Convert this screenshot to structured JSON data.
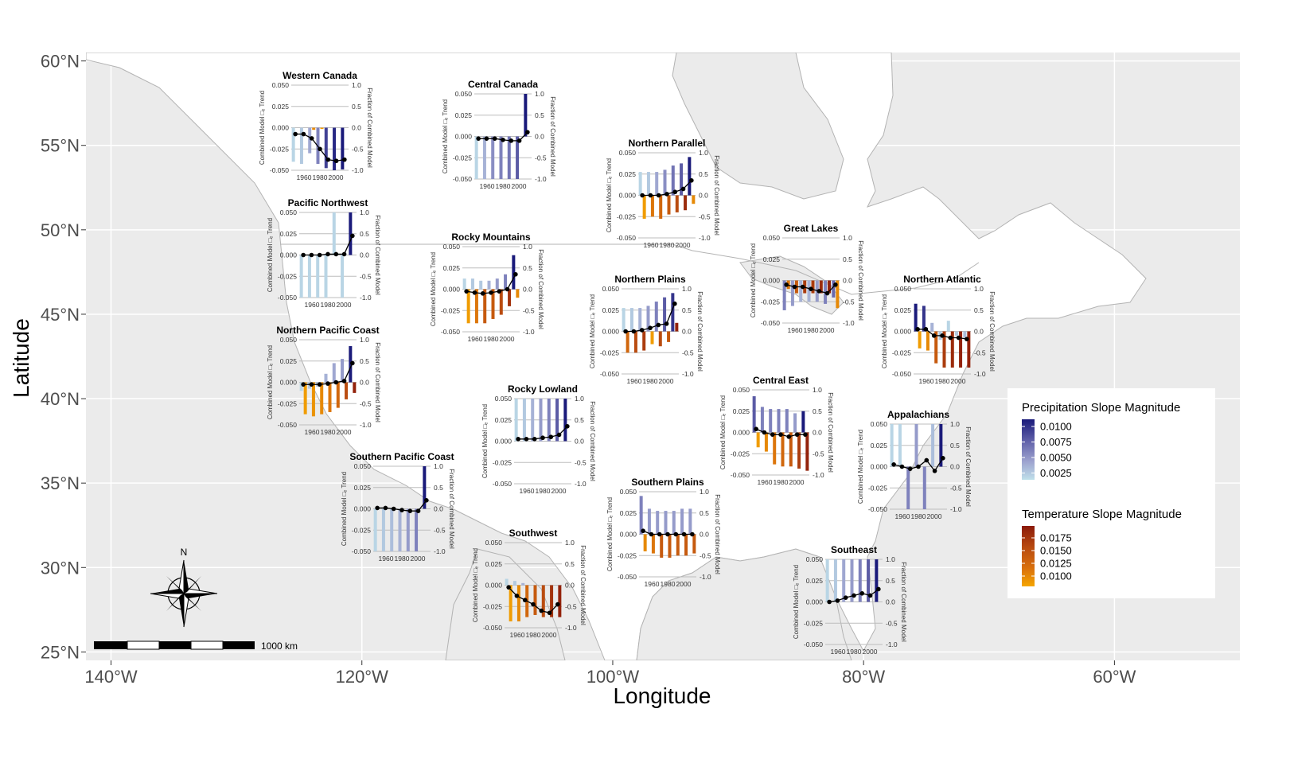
{
  "axes": {
    "x_label": "Longitude",
    "y_label": "Latitude",
    "x_ticks": [
      {
        "lon": -140,
        "label": "140°W"
      },
      {
        "lon": -120,
        "label": "120°W"
      },
      {
        "lon": -100,
        "label": "100°W"
      },
      {
        "lon": -80,
        "label": "80°W"
      },
      {
        "lon": -60,
        "label": "60°W"
      }
    ],
    "y_ticks": [
      {
        "lat": 60,
        "label": "60°N"
      },
      {
        "lat": 55,
        "label": "55°N"
      },
      {
        "lat": 50,
        "label": "50°N"
      },
      {
        "lat": 45,
        "label": "45°N"
      },
      {
        "lat": 40,
        "label": "40°N"
      },
      {
        "lat": 35,
        "label": "35°N"
      },
      {
        "lat": 30,
        "label": "30°N"
      },
      {
        "lat": 25,
        "label": "25°N"
      }
    ],
    "lon_range": [
      -142,
      -50
    ],
    "lat_range": [
      24.5,
      60.5
    ]
  },
  "map_colors": {
    "background": "#ebebeb",
    "land": "#ffffff",
    "border": "#b3b3b3",
    "grid": "#ffffff"
  },
  "compass": {
    "label": "N"
  },
  "scale_bar": {
    "label": "1000 km"
  },
  "mini_chart": {
    "left_axis_label": "Combined Model □ₑ Trend",
    "right_axis_label": "Fraction of Combined Model",
    "left_ticks": [
      "0.050",
      "0.025",
      "0.000",
      "-0.025",
      "-0.050"
    ],
    "right_ticks": [
      "1.0",
      "0.5",
      "0.0",
      "-0.5",
      "-1.0"
    ],
    "x_ticks": [
      "1960",
      "1980",
      "2000"
    ]
  },
  "legend": {
    "precip_title": "Precipitation Slope Magnitude",
    "precip_labels": [
      "0.0100",
      "0.0075",
      "0.0050",
      "0.0025"
    ],
    "precip_colors": [
      "#1a1a7a",
      "#5f5fa8",
      "#9da3cf",
      "#bfe0ea"
    ],
    "temp_title": "Temperature Slope Magnitude",
    "temp_labels": [
      "0.0175",
      "0.0150",
      "0.0125",
      "0.0100"
    ],
    "temp_colors": [
      "#8b1a0a",
      "#b84a10",
      "#d9700c",
      "#f5a600"
    ]
  },
  "chart_data": [
    {
      "type": "bar",
      "name": "Western Canada",
      "precip": [
        -0.8,
        -0.85,
        -0.6,
        -0.85,
        -0.95,
        -1.0,
        -0.98
      ],
      "precip_mag": [
        0.0025,
        0.003,
        0.0045,
        0.006,
        0.0085,
        0.0095,
        0.01
      ],
      "temp": [
        0,
        0,
        -0.05,
        -0.03,
        0,
        0,
        0
      ],
      "temp_mag": [
        0.01,
        0.01,
        0.011,
        0.01,
        0.01,
        0.01,
        0.01
      ],
      "line": [
        -0.15,
        -0.15,
        -0.25,
        -0.5,
        -0.75,
        -0.78,
        -0.75
      ]
    },
    {
      "type": "bar",
      "name": "Central Canada",
      "precip": [
        -1.0,
        -1.0,
        -1.0,
        -1.0,
        -1.0,
        -1.0,
        1.0
      ],
      "precip_mag": [
        0.0025,
        0.004,
        0.0055,
        0.006,
        0.0065,
        0.0075,
        0.01
      ],
      "temp": [
        0,
        0,
        0,
        0,
        0,
        0,
        0
      ],
      "temp_mag": [
        0.01,
        0.01,
        0.01,
        0.01,
        0.01,
        0.01,
        0.01
      ],
      "line": [
        -0.05,
        -0.05,
        -0.05,
        -0.08,
        -0.1,
        -0.1,
        0.1
      ]
    },
    {
      "type": "bar",
      "name": "Northern Parallel",
      "precip": [
        0.55,
        0.55,
        0.55,
        0.6,
        0.7,
        0.75,
        0.9
      ],
      "precip_mag": [
        0.0025,
        0.003,
        0.0045,
        0.0055,
        0.0065,
        0.0075,
        0.01
      ],
      "temp": [
        -0.55,
        -0.5,
        -0.55,
        -0.45,
        -0.4,
        -0.35,
        -0.2
      ],
      "temp_mag": [
        0.01,
        0.012,
        0.013,
        0.014,
        0.015,
        0.017,
        0.011
      ],
      "line": [
        0.0,
        0.0,
        0.0,
        0.03,
        0.08,
        0.15,
        0.35
      ]
    },
    {
      "type": "bar",
      "name": "Pacific Northwest",
      "precip": [
        -1.0,
        -1.0,
        -1.0,
        -1.0,
        1.0,
        -1.0,
        1.0
      ],
      "precip_mag": [
        0.0025,
        0.0025,
        0.0025,
        0.0025,
        0.0025,
        0.0025,
        0.01
      ],
      "temp": [
        0,
        0,
        0,
        0,
        0,
        0,
        0
      ],
      "temp_mag": [
        0.01,
        0.01,
        0.01,
        0.01,
        0.01,
        0.01,
        0.01
      ],
      "line": [
        0.0,
        0.0,
        0.0,
        0.02,
        0.02,
        0.02,
        0.45
      ]
    },
    {
      "type": "bar",
      "name": "Rocky Mountains",
      "precip": [
        0.25,
        0.25,
        0.2,
        0.2,
        0.25,
        0.35,
        0.8
      ],
      "precip_mag": [
        0.0025,
        0.003,
        0.003,
        0.004,
        0.005,
        0.006,
        0.01
      ],
      "temp": [
        -0.8,
        -0.8,
        -0.8,
        -0.7,
        -0.6,
        -0.4,
        -0.2
      ],
      "temp_mag": [
        0.01,
        0.012,
        0.014,
        0.014,
        0.015,
        0.0165,
        0.011
      ],
      "line": [
        -0.05,
        -0.08,
        -0.1,
        -0.08,
        -0.05,
        0.0,
        0.35
      ]
    },
    {
      "type": "bar",
      "name": "Great Lakes",
      "precip": [
        -0.7,
        -0.6,
        -0.5,
        -0.5,
        -0.5,
        -0.55,
        -0.4
      ],
      "precip_mag": [
        0.006,
        0.005,
        0.004,
        0.004,
        0.005,
        0.006,
        0.007
      ],
      "temp": [
        -0.2,
        -0.3,
        -0.3,
        -0.3,
        -0.3,
        -0.3,
        -0.65
      ],
      "temp_mag": [
        0.012,
        0.014,
        0.016,
        0.016,
        0.017,
        0.0175,
        0.011
      ],
      "line": [
        -0.1,
        -0.15,
        -0.15,
        -0.2,
        -0.25,
        -0.3,
        -0.1
      ]
    },
    {
      "type": "bar",
      "name": "Northern Plains",
      "precip": [
        0.55,
        0.55,
        0.55,
        0.6,
        0.7,
        0.8,
        0.9
      ],
      "precip_mag": [
        0.0025,
        0.003,
        0.004,
        0.005,
        0.006,
        0.0075,
        0.009
      ],
      "temp": [
        -0.5,
        -0.5,
        -0.45,
        -0.3,
        -0.35,
        -0.25,
        0.2
      ],
      "temp_mag": [
        0.013,
        0.015,
        0.016,
        0.01,
        0.015,
        0.014,
        0.0175
      ],
      "line": [
        0.0,
        0.0,
        0.03,
        0.08,
        0.15,
        0.18,
        0.65
      ]
    },
    {
      "type": "bar",
      "name": "Northern Atlantic",
      "precip": [
        0.65,
        0.6,
        0.2,
        -0.2,
        0.25,
        -0.1,
        -0.15
      ],
      "precip_mag": [
        0.01,
        0.009,
        0.004,
        0.003,
        0.0025,
        0.003,
        0.0035
      ],
      "temp": [
        -0.4,
        -0.45,
        -0.75,
        -0.85,
        -0.85,
        -0.85,
        -0.85
      ],
      "temp_mag": [
        0.01,
        0.011,
        0.014,
        0.016,
        0.017,
        0.0175,
        0.0175
      ],
      "line": [
        0.05,
        0.05,
        -0.1,
        -0.1,
        -0.15,
        -0.15,
        -0.18
      ]
    },
    {
      "type": "bar",
      "name": "Northern Pacific Coast",
      "precip": [
        -0.2,
        -0.15,
        -0.1,
        0.2,
        0.45,
        0.55,
        0.85
      ],
      "precip_mag": [
        0.0025,
        0.003,
        0.0035,
        0.004,
        0.0045,
        0.005,
        0.01
      ],
      "temp": [
        -0.75,
        -0.8,
        -0.75,
        -0.7,
        -0.6,
        -0.4,
        -0.25
      ],
      "temp_mag": [
        0.01,
        0.0105,
        0.011,
        0.012,
        0.013,
        0.015,
        0.0175
      ],
      "line": [
        -0.05,
        -0.05,
        -0.05,
        -0.03,
        0.0,
        0.03,
        0.45
      ]
    },
    {
      "type": "bar",
      "name": "Rocky Lowland",
      "precip": [
        1.0,
        1.0,
        1.0,
        1.0,
        1.0,
        1.0,
        1.0
      ],
      "precip_mag": [
        0.0025,
        0.003,
        0.004,
        0.005,
        0.006,
        0.0075,
        0.01
      ],
      "temp": [
        0,
        0,
        0,
        0,
        0,
        0,
        0
      ],
      "temp_mag": [
        0.01,
        0.01,
        0.01,
        0.01,
        0.01,
        0.01,
        0.01
      ],
      "line": [
        0.05,
        0.05,
        0.05,
        0.08,
        0.1,
        0.15,
        0.35
      ]
    },
    {
      "type": "bar",
      "name": "Central East",
      "precip": [
        0.85,
        0.6,
        0.55,
        0.55,
        0.55,
        0.45,
        0.5
      ],
      "precip_mag": [
        0.0075,
        0.006,
        0.006,
        0.006,
        0.006,
        0.005,
        0.01
      ],
      "temp": [
        -0.35,
        -0.45,
        -0.75,
        -0.8,
        -0.8,
        -0.85,
        -0.9
      ],
      "temp_mag": [
        0.01,
        0.011,
        0.012,
        0.013,
        0.014,
        0.016,
        0.0175
      ],
      "line": [
        0.08,
        0.0,
        -0.05,
        -0.05,
        -0.1,
        -0.05,
        -0.05
      ]
    },
    {
      "type": "bar",
      "name": "Appalachians",
      "precip": [
        1.0,
        1.0,
        -1.0,
        1.0,
        -1.0,
        1.0,
        1.0
      ],
      "precip_mag": [
        0.0025,
        0.0025,
        0.006,
        0.005,
        0.006,
        0.0035,
        0.01
      ],
      "temp": [
        0,
        0,
        0,
        0,
        0,
        0,
        0
      ],
      "temp_mag": [
        0.01,
        0.01,
        0.01,
        0.01,
        0.01,
        0.01,
        0.01
      ],
      "line": [
        0.05,
        0.0,
        -0.05,
        0.0,
        0.15,
        -0.1,
        0.2
      ]
    },
    {
      "type": "bar",
      "name": "Southern Pacific Coast",
      "precip": [
        -1.0,
        -1.0,
        -1.0,
        -1.0,
        -1.0,
        -1.0,
        1.0
      ],
      "precip_mag": [
        0.0025,
        0.003,
        0.0035,
        0.004,
        0.005,
        0.006,
        0.01
      ],
      "temp": [
        0,
        0,
        0,
        0,
        0,
        0,
        0
      ],
      "temp_mag": [
        0.01,
        0.01,
        0.01,
        0.01,
        0.01,
        0.01,
        0.01
      ],
      "line": [
        0.02,
        0.02,
        0.0,
        -0.03,
        -0.05,
        -0.05,
        0.2
      ]
    },
    {
      "type": "bar",
      "name": "Southern Plains",
      "precip": [
        0.9,
        0.6,
        0.55,
        0.55,
        0.55,
        0.6,
        0.6
      ],
      "precip_mag": [
        0.006,
        0.005,
        0.005,
        0.005,
        0.005,
        0.005,
        0.005
      ],
      "temp": [
        -0.4,
        -0.45,
        -0.55,
        -0.55,
        -0.5,
        -0.5,
        -0.45
      ],
      "temp_mag": [
        0.011,
        0.012,
        0.014,
        0.014,
        0.014,
        0.014,
        0.014
      ],
      "line": [
        0.08,
        0.0,
        0.0,
        0.0,
        0.0,
        0.0,
        0.0
      ]
    },
    {
      "type": "bar",
      "name": "Southwest",
      "precip": [
        0.15,
        0.1,
        0.05,
        0.0,
        0.0,
        0.0,
        0.0
      ],
      "precip_mag": [
        0.0025,
        0.003,
        0.004,
        0.005,
        0.006,
        0.007,
        0.009
      ],
      "temp": [
        -0.85,
        -0.85,
        -0.75,
        -0.7,
        -0.75,
        -0.75,
        -0.75
      ],
      "temp_mag": [
        0.01,
        0.011,
        0.013,
        0.014,
        0.015,
        0.0165,
        0.0175
      ],
      "line": [
        -0.05,
        -0.25,
        -0.35,
        -0.45,
        -0.6,
        -0.65,
        -0.45
      ]
    },
    {
      "type": "bar",
      "name": "Southeast",
      "precip": [
        1.0,
        1.0,
        1.0,
        1.0,
        1.0,
        1.0,
        1.0
      ],
      "precip_mag": [
        0.0025,
        0.003,
        0.0045,
        0.005,
        0.006,
        0.0075,
        0.01
      ],
      "temp": [
        0,
        0,
        0,
        0,
        0,
        0,
        0
      ],
      "temp_mag": [
        0.01,
        0.01,
        0.01,
        0.01,
        0.01,
        0.01,
        0.01
      ],
      "line": [
        0.0,
        0.03,
        0.1,
        0.15,
        0.2,
        0.15,
        0.3
      ]
    }
  ]
}
